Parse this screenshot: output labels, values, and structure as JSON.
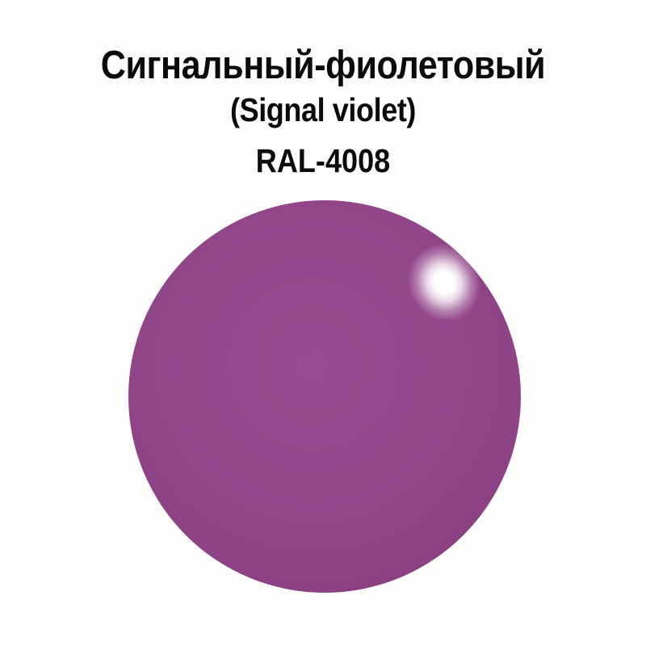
{
  "title": {
    "russian_name": "Сигнальный-фиолетовый",
    "english_name": "(Signal violet)",
    "ral_code": "RAL-4008"
  },
  "swatch": {
    "color_name_ru": "Сигнальный-фиолетовый",
    "color_name_en": "Signal violet",
    "ral_code": "RAL-4008",
    "color_hex": "#93478b",
    "color_light_hex": "#984b90",
    "edge_shade_hex": "#652e5d",
    "highlight_hex": "#ffffff",
    "background_hex": "#fdfdfb",
    "text_hex": "#0b0b0b"
  }
}
